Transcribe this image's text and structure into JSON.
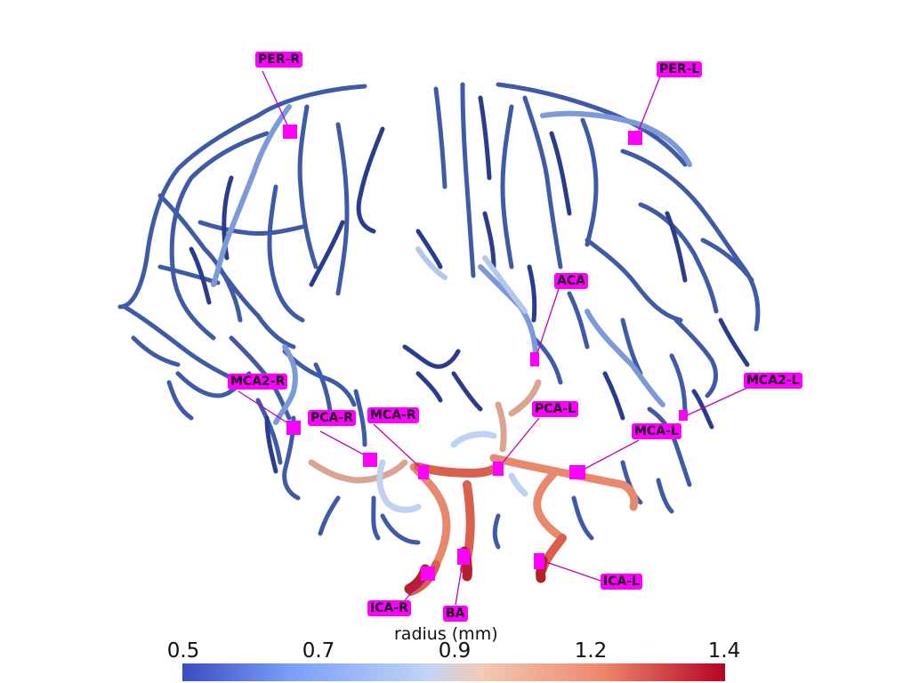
{
  "labels": {
    "per_r": "PER-R",
    "per_l": "PER-L",
    "aca": "ACA",
    "mca2_r": "MCA2-R",
    "mca2_l": "MCA2-L",
    "pca_r": "PCA-R",
    "mca_r": "MCA-R",
    "pca_l": "PCA-L",
    "mca_l": "MCA-L",
    "ica_r": "ICA-R",
    "ba": "BA",
    "ica_l": "ICA-L"
  },
  "colorbar": {
    "title": "radius (mm)",
    "ticks": [
      "0.5",
      "0.7",
      "0.9",
      "1.2",
      "1.4"
    ],
    "min": 0.5,
    "max": 1.4,
    "colors": [
      "#3b4cc0",
      "#7b9ff9",
      "#c0d4f5",
      "#f2cbb7",
      "#ee8468",
      "#b40426"
    ]
  },
  "colors": {
    "label_bg": "#ff00ff",
    "leader": "#c000c0"
  }
}
